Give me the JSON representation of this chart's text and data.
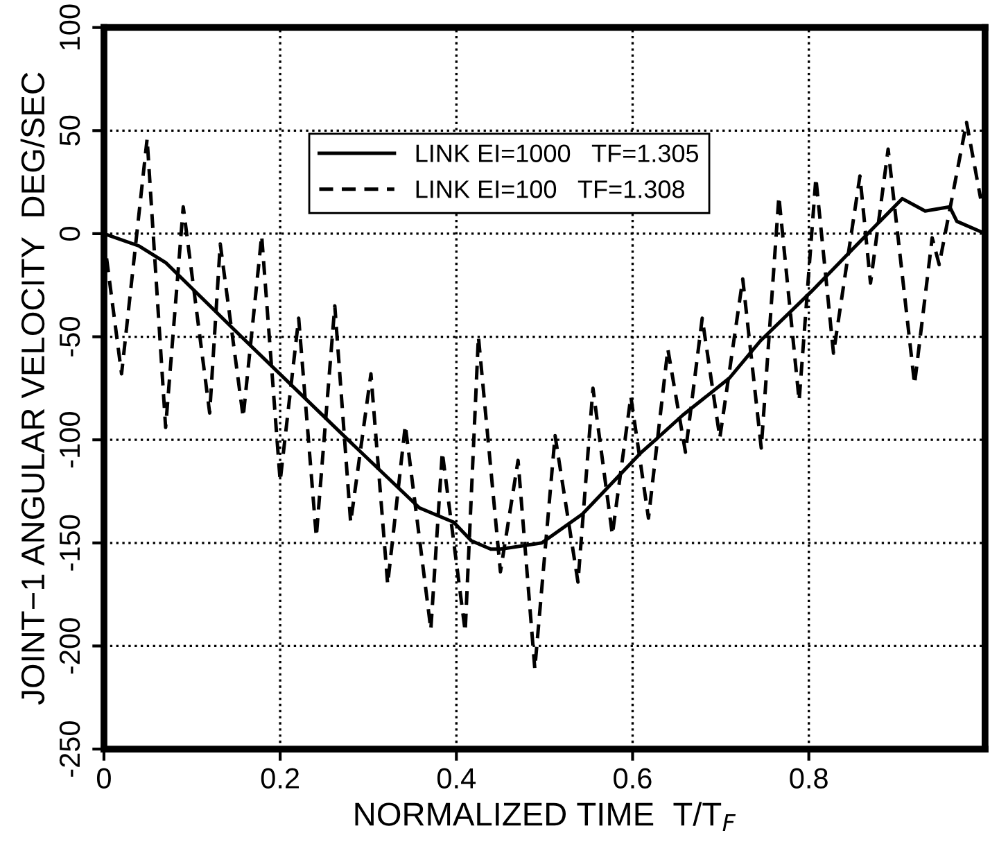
{
  "chart_data": {
    "type": "line",
    "xlabel": "NORMALIZED TIME  T/T$_{F}$",
    "ylabel": "JOINT−1 ANGULAR VELOCITY  DEG/SEC",
    "xlim": [
      0,
      1
    ],
    "xticks": [
      0,
      0.2,
      0.4,
      0.6,
      0.8
    ],
    "ylim": [
      -250,
      100
    ],
    "yticks": [
      -250,
      -200,
      -150,
      -100,
      -50,
      0,
      50,
      100
    ],
    "grid": true,
    "legend": "top",
    "marker": "none",
    "series": [
      {
        "name": "LINK EI=1000   TF=1.305",
        "color": "#000000",
        "line_style": "solid",
        "x": [
          0,
          0.04,
          0.07,
          0.156,
          0.277,
          0.358,
          0.397,
          0.417,
          0.439,
          0.45,
          0.497,
          0.543,
          0.61,
          0.626,
          0.657,
          0.71,
          0.745,
          0.803,
          0.86,
          0.906,
          0.932,
          0.96,
          0.968,
          0.995
        ],
        "values": [
          0,
          -6,
          -14,
          -50,
          -100,
          -133,
          -140,
          -149,
          -153,
          -153,
          -150,
          -136,
          -106,
          -100,
          -88,
          -70,
          -52,
          -28,
          -3,
          17,
          11,
          13,
          6,
          1
        ]
      },
      {
        "name": "LINK EI=100   TF=1.308",
        "color": "#000000",
        "line_style": "dashed",
        "x": [
          0.003,
          0.02,
          0.049,
          0.07,
          0.09,
          0.12,
          0.132,
          0.158,
          0.179,
          0.2,
          0.221,
          0.241,
          0.262,
          0.28,
          0.303,
          0.322,
          0.342,
          0.371,
          0.384,
          0.41,
          0.425,
          0.45,
          0.47,
          0.489,
          0.512,
          0.538,
          0.555,
          0.577,
          0.598,
          0.618,
          0.64,
          0.66,
          0.679,
          0.699,
          0.725,
          0.746,
          0.766,
          0.789,
          0.808,
          0.828,
          0.858,
          0.87,
          0.89,
          0.92,
          0.94,
          0.948,
          0.979,
          0.995
        ],
        "values": [
          -12,
          -68,
          46,
          -94,
          13,
          -87,
          -5,
          -89,
          -1,
          -120,
          -41,
          -147,
          -35,
          -140,
          -68,
          -170,
          -93,
          -192,
          -106,
          -193,
          -50,
          -164,
          -110,
          -211,
          -98,
          -169,
          -75,
          -146,
          -79,
          -138,
          -56,
          -106,
          -41,
          -99,
          -22,
          -104,
          18,
          -81,
          27,
          -58,
          28,
          -24,
          41,
          -73,
          -2,
          -15,
          54,
          17
        ]
      }
    ]
  }
}
